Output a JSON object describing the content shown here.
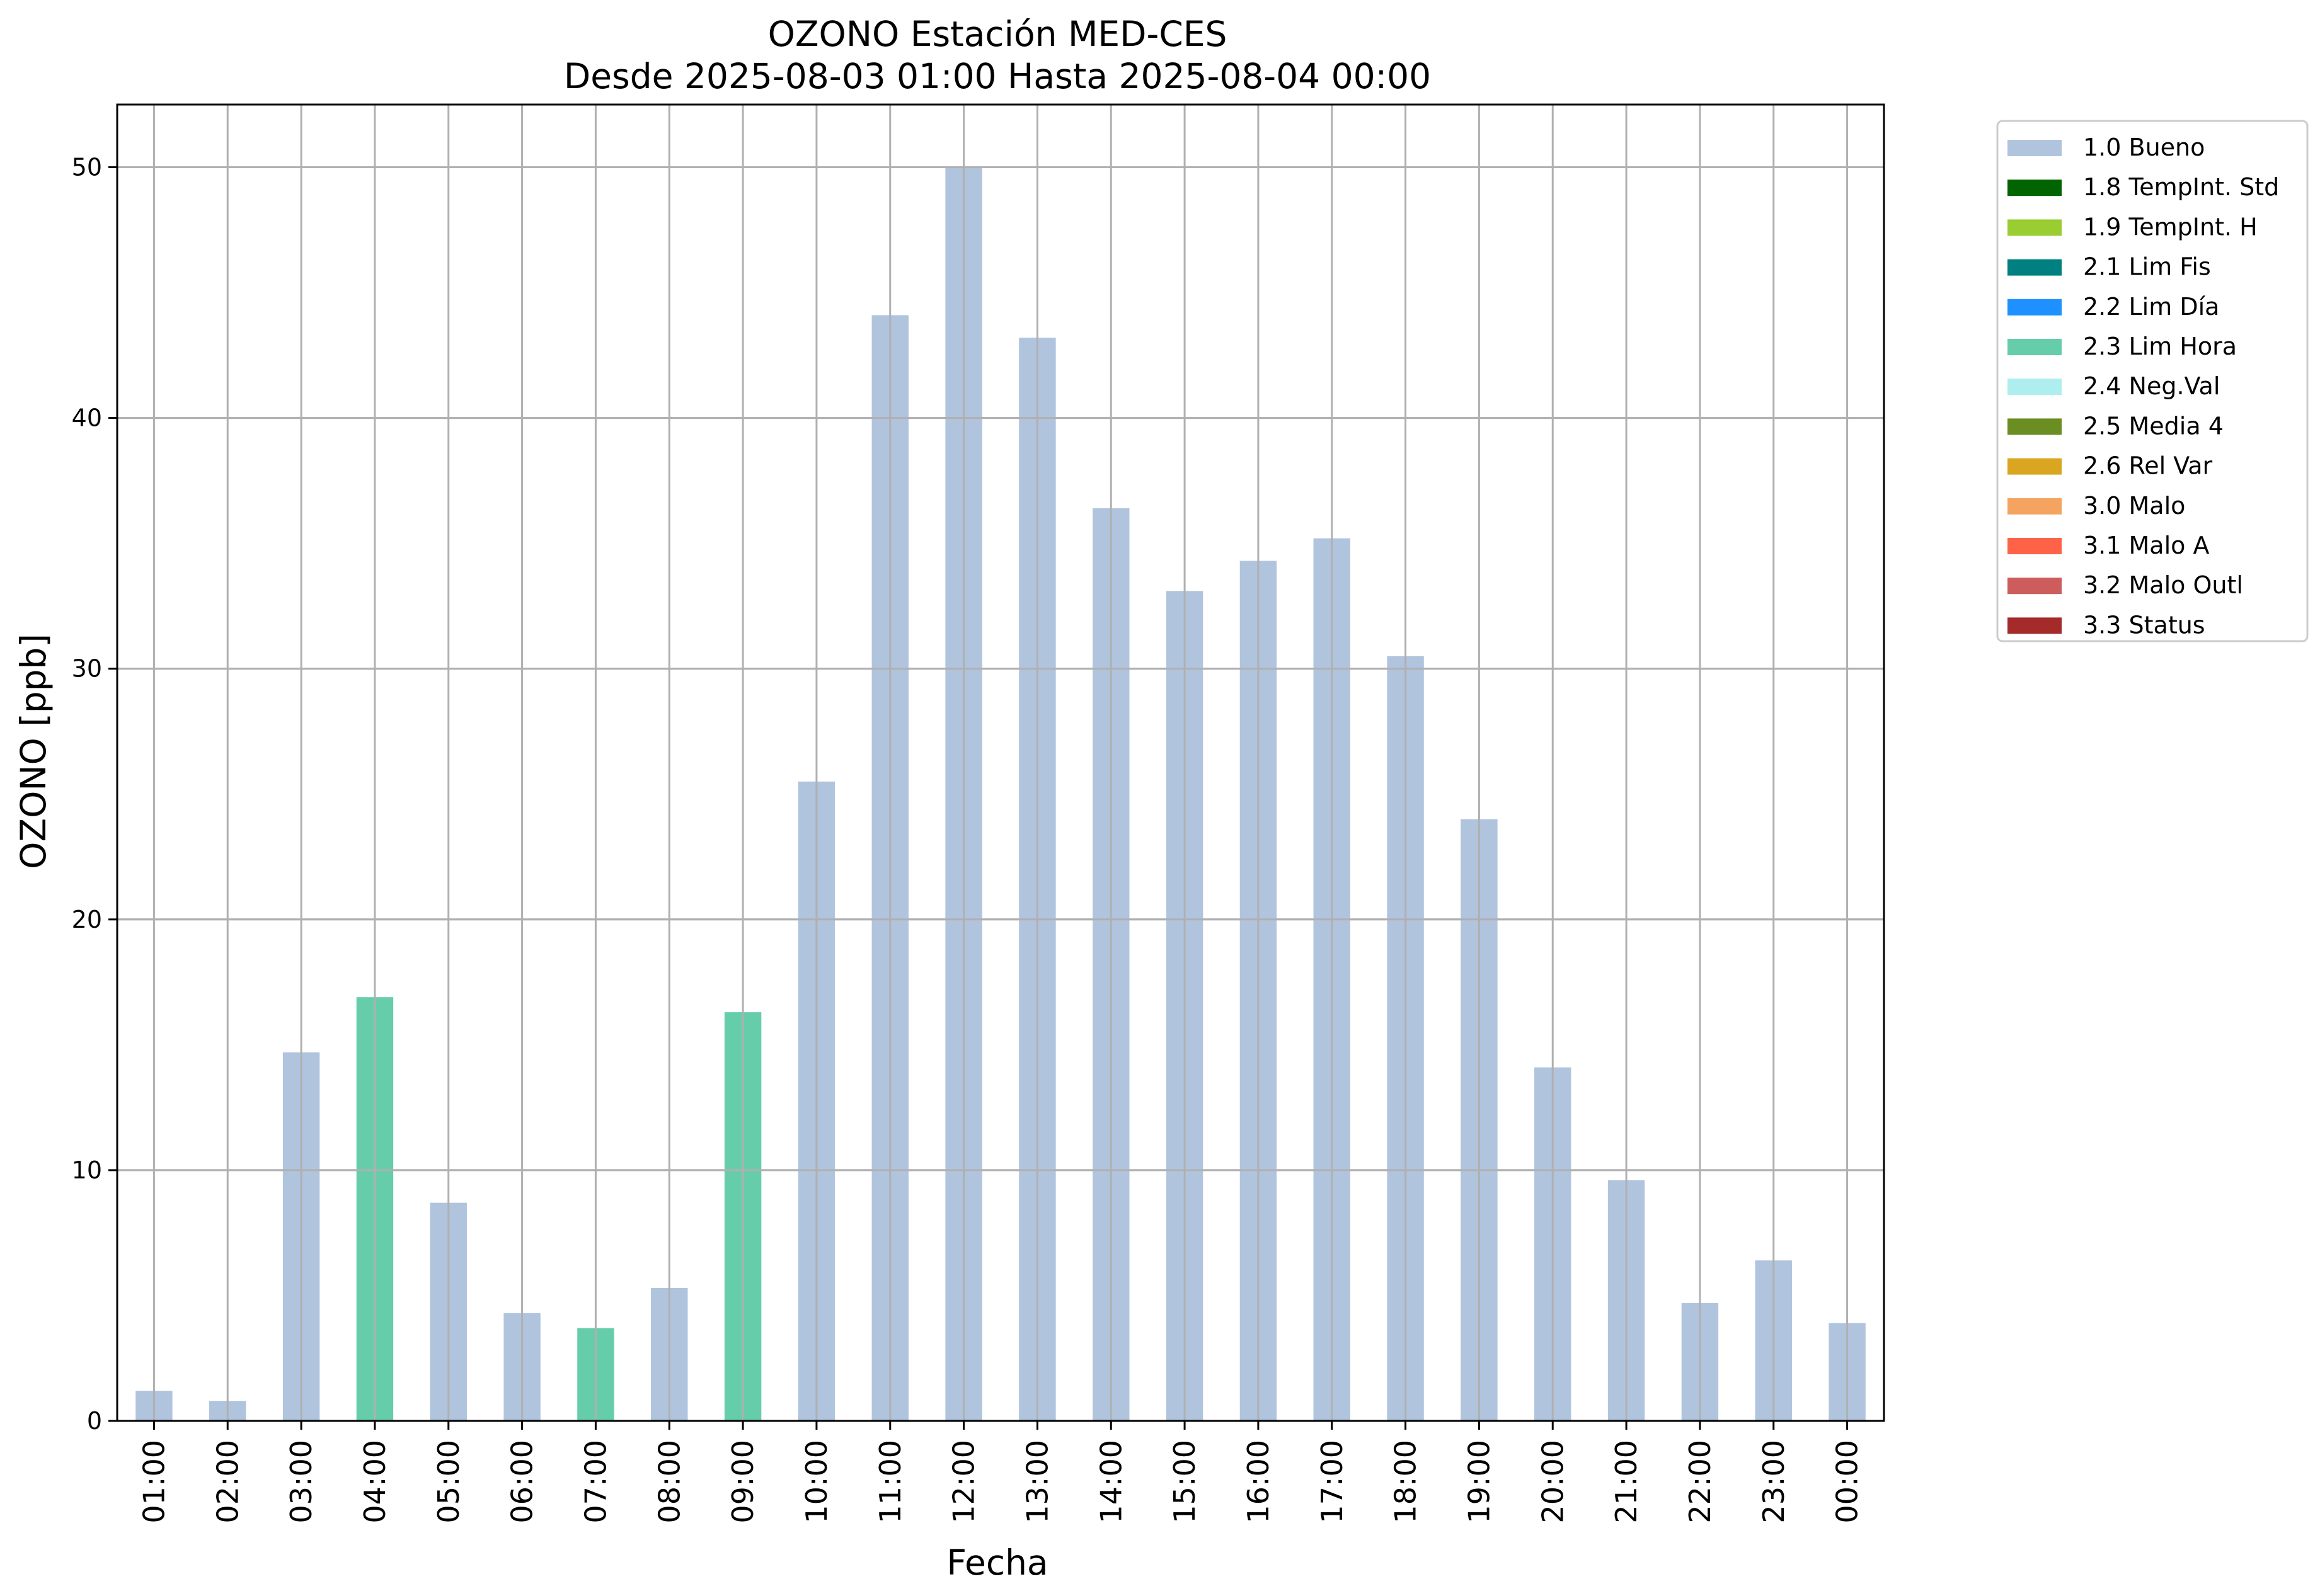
{
  "chart_data": {
    "type": "bar",
    "title": "OZONO Estación MED-CES",
    "subtitle": "Desde 2025-08-03 01:00 Hasta 2025-08-04 00:00",
    "xlabel": "Fecha",
    "ylabel": "OZONO [ppb]",
    "ylim": [
      0,
      52.5
    ],
    "yticks": [
      0,
      10,
      20,
      30,
      40,
      50
    ],
    "grid": true,
    "legend_position": "outside-top-right",
    "categories": [
      "01:00",
      "02:00",
      "03:00",
      "04:00",
      "05:00",
      "06:00",
      "07:00",
      "08:00",
      "09:00",
      "10:00",
      "11:00",
      "12:00",
      "13:00",
      "14:00",
      "15:00",
      "16:00",
      "17:00",
      "18:00",
      "19:00",
      "20:00",
      "21:00",
      "22:00",
      "23:00",
      "00:00"
    ],
    "values": [
      1.2,
      0.8,
      14.7,
      16.9,
      8.7,
      4.3,
      3.7,
      5.3,
      16.3,
      25.5,
      44.1,
      50.0,
      43.2,
      36.4,
      33.1,
      34.3,
      35.2,
      30.5,
      24.0,
      14.1,
      9.6,
      4.7,
      6.4,
      3.9
    ],
    "flags": [
      "1.0 Bueno",
      "1.0 Bueno",
      "1.0 Bueno",
      "2.3 Lim Hora",
      "1.0 Bueno",
      "1.0 Bueno",
      "2.3 Lim Hora",
      "1.0 Bueno",
      "2.3 Lim Hora",
      "1.0 Bueno",
      "1.0 Bueno",
      "1.0 Bueno",
      "1.0 Bueno",
      "1.0 Bueno",
      "1.0 Bueno",
      "1.0 Bueno",
      "1.0 Bueno",
      "1.0 Bueno",
      "1.0 Bueno",
      "1.0 Bueno",
      "1.0 Bueno",
      "1.0 Bueno",
      "1.0 Bueno",
      "1.0 Bueno"
    ],
    "legend": [
      {
        "label": "1.0 Bueno",
        "color": "#b0c4de"
      },
      {
        "label": "1.8 TempInt. Std",
        "color": "#006400"
      },
      {
        "label": "1.9 TempInt. H",
        "color": "#9acd32"
      },
      {
        "label": "2.1 Lim Fis",
        "color": "#008080"
      },
      {
        "label": "2.2 Lim Día",
        "color": "#1e90ff"
      },
      {
        "label": "2.3 Lim Hora",
        "color": "#66cdaa"
      },
      {
        "label": "2.4 Neg.Val",
        "color": "#afeeee"
      },
      {
        "label": "2.5 Media 4",
        "color": "#6b8e23"
      },
      {
        "label": "2.6 Rel Var",
        "color": "#daa520"
      },
      {
        "label": "3.0 Malo",
        "color": "#f4a460"
      },
      {
        "label": "3.1 Malo A",
        "color": "#ff6347"
      },
      {
        "label": "3.2 Malo Outl",
        "color": "#cd5c5c"
      },
      {
        "label": "3.3 Status",
        "color": "#a52a2a"
      }
    ]
  }
}
